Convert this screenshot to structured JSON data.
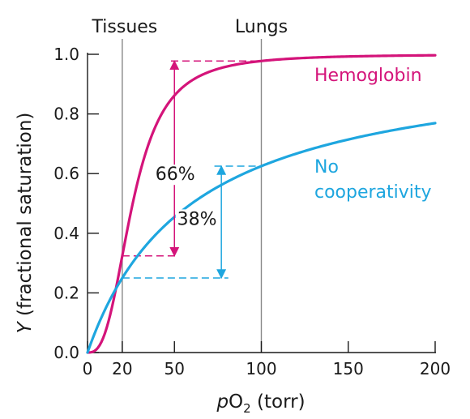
{
  "colors": {
    "hemoglobin": "#d4147a",
    "no_cooperativity": "#1ea6df",
    "axis": "#1a1a1a",
    "reference_line": "#888888"
  },
  "regions": [
    {
      "label": "Tissues",
      "x": 20
    },
    {
      "label": "Lungs",
      "x": 100
    }
  ],
  "annotations": {
    "hemo_change": "66%",
    "noncoop_change": "38%"
  },
  "labels": {
    "ylabel_var": "Y",
    "ylabel_rest": " (fractional saturation)",
    "xlabel_p": "p",
    "xlabel_o": "O",
    "xlabel_sub": "2",
    "xlabel_rest": " (torr)",
    "hemoglobin": "Hemoglobin",
    "no_coop_line1": "No",
    "no_coop_line2": "cooperativity"
  },
  "chart_data": {
    "type": "line",
    "xlabel": "pO2 (torr)",
    "ylabel": "Y (fractional saturation)",
    "xlim": [
      0,
      200
    ],
    "ylim": [
      0,
      1.0
    ],
    "xticks": [
      0,
      20,
      50,
      100,
      150,
      200
    ],
    "xtick_labels": [
      "0",
      "20",
      "50",
      "100",
      "150",
      "200"
    ],
    "yticks": [
      0,
      0.2,
      0.4,
      0.6,
      0.8,
      1.0
    ],
    "ytick_labels": [
      "0.0",
      "0.2",
      "0.4",
      "0.6",
      "0.8",
      "1.0"
    ],
    "series": [
      {
        "name": "Hemoglobin",
        "model": "hill",
        "p50": 26,
        "n": 2.8,
        "x": [
          0,
          5,
          10,
          15,
          20,
          26,
          30,
          40,
          50,
          60,
          80,
          100,
          150,
          200
        ],
        "y": [
          0,
          0.01,
          0.07,
          0.18,
          0.32,
          0.5,
          0.6,
          0.77,
          0.86,
          0.91,
          0.96,
          0.975,
          0.99,
          0.995
        ]
      },
      {
        "name": "No cooperativity",
        "model": "hyperbolic",
        "p50": 60,
        "x": [
          0,
          10,
          20,
          30,
          50,
          60,
          80,
          100,
          150,
          200
        ],
        "y": [
          0,
          0.14,
          0.25,
          0.33,
          0.45,
          0.5,
          0.57,
          0.63,
          0.71,
          0.77
        ]
      }
    ],
    "annotations": [
      {
        "label": "66%",
        "series": "Hemoglobin",
        "from_y": 0.32,
        "to_y": 0.975
      },
      {
        "label": "38%",
        "series": "No cooperativity",
        "from_y": 0.25,
        "to_y": 0.63
      }
    ]
  }
}
